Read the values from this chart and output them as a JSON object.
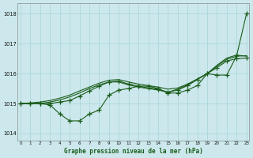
{
  "xlabel": "Graphe pression niveau de la mer (hPa)",
  "ylim": [
    1013.75,
    1018.35
  ],
  "xlim": [
    -0.3,
    23.3
  ],
  "yticks": [
    1014,
    1015,
    1016,
    1017,
    1018
  ],
  "xticks": [
    0,
    1,
    2,
    3,
    4,
    5,
    6,
    7,
    8,
    9,
    10,
    11,
    12,
    13,
    14,
    15,
    16,
    17,
    18,
    19,
    20,
    21,
    22,
    23
  ],
  "background_color": "#cce8ec",
  "grid_color": "#a8d4d8",
  "line_color": "#1a5c1a",
  "line_marker1": [
    1015.0,
    1015.0,
    1015.0,
    1014.95,
    1014.65,
    1014.42,
    1014.42,
    1014.65,
    1014.78,
    1015.28,
    1015.45,
    1015.5,
    1015.58,
    1015.58,
    1015.5,
    1015.35,
    1015.35,
    1015.45,
    1015.6,
    1016.0,
    1015.95,
    1015.95,
    1016.6,
    1018.0
  ],
  "line_marker2": [
    1015.0,
    1015.0,
    1015.0,
    1015.0,
    1015.05,
    1015.1,
    1015.25,
    1015.42,
    1015.58,
    1015.72,
    1015.75,
    1015.65,
    1015.58,
    1015.52,
    1015.48,
    1015.38,
    1015.45,
    1015.6,
    1015.8,
    1016.0,
    1016.2,
    1016.42,
    1016.5,
    1016.52
  ],
  "line_smooth1": [
    1015.0,
    1015.02,
    1015.05,
    1015.1,
    1015.18,
    1015.28,
    1015.42,
    1015.55,
    1015.68,
    1015.78,
    1015.8,
    1015.72,
    1015.65,
    1015.6,
    1015.55,
    1015.48,
    1015.52,
    1015.65,
    1015.82,
    1016.0,
    1016.28,
    1016.52,
    1016.62,
    1016.58
  ],
  "line_smooth2": [
    1015.0,
    1015.0,
    1015.0,
    1015.05,
    1015.12,
    1015.22,
    1015.35,
    1015.5,
    1015.62,
    1015.72,
    1015.72,
    1015.62,
    1015.55,
    1015.5,
    1015.45,
    1015.38,
    1015.48,
    1015.62,
    1015.82,
    1016.0,
    1016.25,
    1016.48,
    1016.58,
    1016.6
  ]
}
